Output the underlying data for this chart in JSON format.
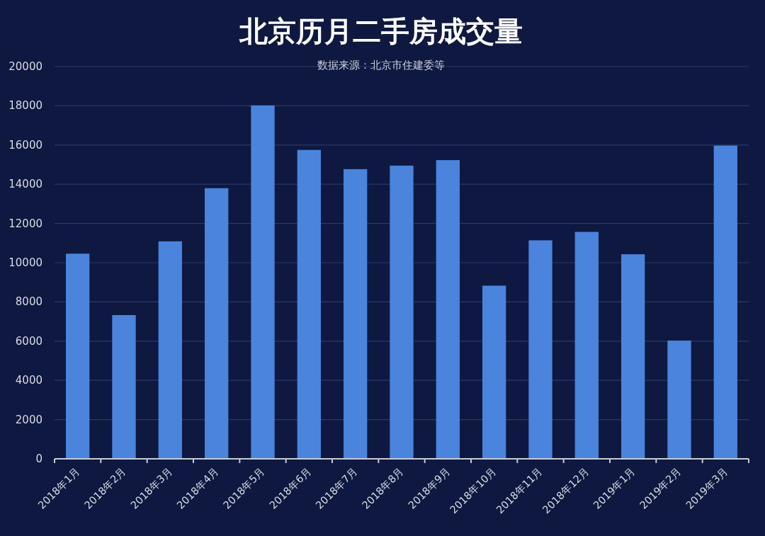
{
  "chart_data": {
    "type": "bar",
    "title": "北京历月二手房成交量",
    "annotations": [
      "数据来源：北京市住建委等"
    ],
    "categories": [
      "2018年1月",
      "2018年2月",
      "2018年3月",
      "2018年4月",
      "2018年5月",
      "2018年6月",
      "2018年7月",
      "2018年8月",
      "2018年9月",
      "2018年10月",
      "2018年11月",
      "2018年12月",
      "2019年1月",
      "2019年2月",
      "2019年3月"
    ],
    "values": [
      10460,
      7330,
      11090,
      13800,
      18020,
      15750,
      14770,
      14950,
      15230,
      8830,
      11140,
      11570,
      10430,
      6030,
      15970
    ],
    "color": "#4a84dc",
    "ylim": [
      0,
      20000
    ],
    "yticks": [
      0,
      2000,
      4000,
      6000,
      8000,
      10000,
      12000,
      14000,
      16000,
      18000,
      20000
    ],
    "grid": "y"
  }
}
